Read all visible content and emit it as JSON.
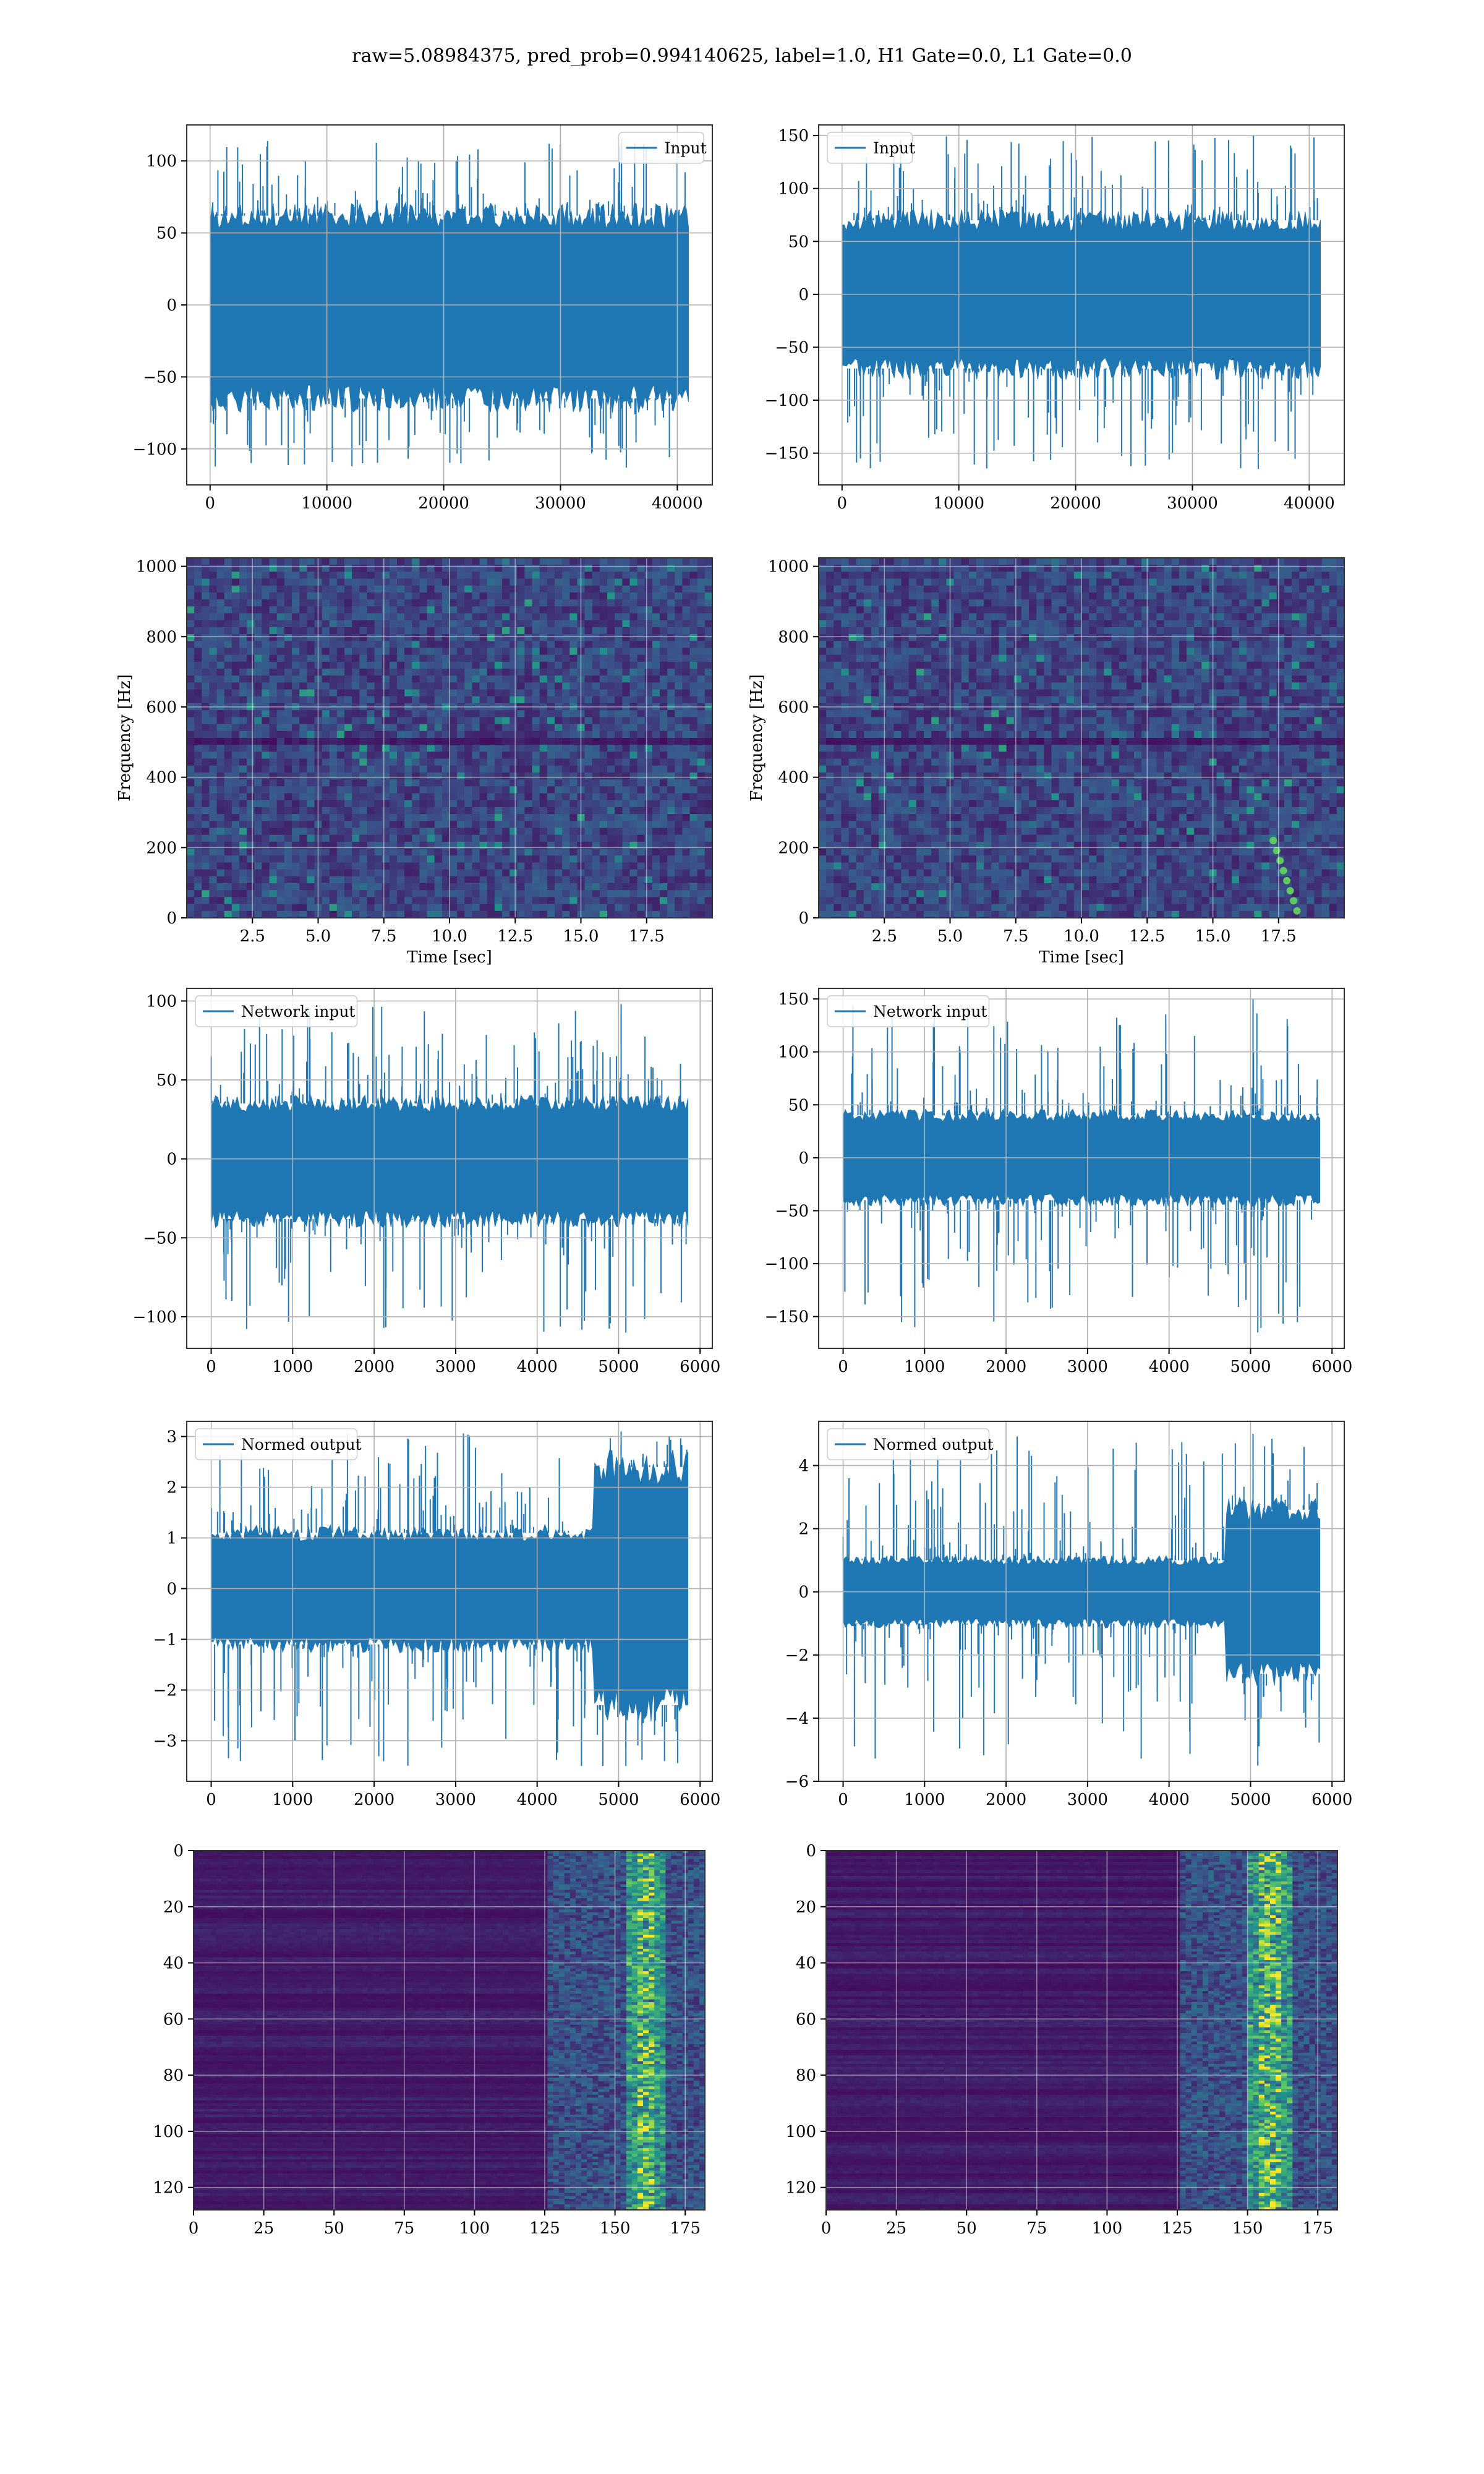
{
  "figure": {
    "title": "raw=5.08984375, pred_prob=0.994140625, label=1.0, H1 Gate=0.0, L1 Gate=0.0",
    "line_color": "#1f77b4"
  },
  "chart_data": [
    {
      "id": "input-h1",
      "type": "line",
      "title": "",
      "xlabel": "",
      "ylabel": "",
      "legend": {
        "label": "Input",
        "position": "top-right"
      },
      "xlim": [
        -2000,
        43000
      ],
      "ylim": [
        -125,
        125
      ],
      "xticks": [
        0,
        10000,
        20000,
        30000,
        40000
      ],
      "xticklabels": [
        "0",
        "10000",
        "20000",
        "30000",
        "40000"
      ],
      "yticks": [
        -100,
        -50,
        0,
        50,
        100
      ],
      "yticklabels": [
        "−100",
        "−50",
        "0",
        "50",
        "100"
      ],
      "grid": true,
      "series": [
        {
          "name": "Input",
          "x_range": [
            0,
            40960
          ],
          "band": [
            -65,
            62
          ],
          "min": -113,
          "max": 115
        }
      ]
    },
    {
      "id": "input-l1",
      "type": "line",
      "title": "",
      "xlabel": "",
      "ylabel": "",
      "legend": {
        "label": "Input",
        "position": "top-left"
      },
      "xlim": [
        -2000,
        43000
      ],
      "ylim": [
        -180,
        160
      ],
      "xticks": [
        0,
        10000,
        20000,
        30000,
        40000
      ],
      "xticklabels": [
        "0",
        "10000",
        "20000",
        "30000",
        "40000"
      ],
      "yticks": [
        -150,
        -100,
        -50,
        0,
        50,
        100,
        150
      ],
      "yticklabels": [
        "−150",
        "−100",
        "−50",
        "0",
        "50",
        "100",
        "150"
      ],
      "grid": true,
      "series": [
        {
          "name": "Input",
          "x_range": [
            0,
            40960
          ],
          "band": [
            -70,
            70
          ],
          "min": -165,
          "max": 150
        }
      ]
    },
    {
      "id": "spectrogram-h1",
      "type": "heatmap",
      "title": "",
      "xlabel": "Time [sec]",
      "ylabel": "Frequency [Hz]",
      "xlim": [
        0,
        20
      ],
      "ylim": [
        0,
        1024
      ],
      "xticks": [
        2.5,
        5,
        7.5,
        10,
        12.5,
        15,
        17.5
      ],
      "xticklabels": [
        "2.5",
        "5.0",
        "7.5",
        "10.0",
        "12.5",
        "15.0",
        "17.5"
      ],
      "yticks": [
        0,
        200,
        400,
        600,
        800,
        1000
      ],
      "yticklabels": [
        "0",
        "200",
        "400",
        "600",
        "800",
        "1000"
      ],
      "grid": true,
      "colormap": "viridis",
      "noise_seed": 11
    },
    {
      "id": "spectrogram-l1",
      "type": "heatmap",
      "title": "",
      "xlabel": "Time [sec]",
      "ylabel": "Frequency [Hz]",
      "xlim": [
        0,
        20
      ],
      "ylim": [
        0,
        1024
      ],
      "xticks": [
        2.5,
        5,
        7.5,
        10,
        12.5,
        15,
        17.5
      ],
      "xticklabels": [
        "2.5",
        "5.0",
        "7.5",
        "10.0",
        "12.5",
        "15.0",
        "17.5"
      ],
      "yticks": [
        0,
        200,
        400,
        600,
        800,
        1000
      ],
      "yticklabels": [
        "0",
        "200",
        "400",
        "600",
        "800",
        "1000"
      ],
      "grid": true,
      "colormap": "viridis",
      "noise_seed": 29,
      "chirp": {
        "t": [
          17.3,
          18.2
        ],
        "f": [
          20,
          220
        ]
      }
    },
    {
      "id": "network-input-h1",
      "type": "line",
      "title": "",
      "xlabel": "",
      "ylabel": "",
      "legend": {
        "label": "Network input",
        "position": "top-left"
      },
      "xlim": [
        -300,
        6150
      ],
      "ylim": [
        -120,
        108
      ],
      "xticks": [
        0,
        1000,
        2000,
        3000,
        4000,
        5000,
        6000
      ],
      "xticklabels": [
        "0",
        "1000",
        "2000",
        "3000",
        "4000",
        "5000",
        "6000"
      ],
      "yticks": [
        -100,
        -50,
        0,
        50,
        100
      ],
      "yticklabels": [
        "−100",
        "−50",
        "0",
        "50",
        "100"
      ],
      "grid": true,
      "series": [
        {
          "name": "Network input",
          "x_range": [
            0,
            5850
          ],
          "band": [
            -38,
            35
          ],
          "min": -110,
          "max": 98
        }
      ]
    },
    {
      "id": "network-input-l1",
      "type": "line",
      "title": "",
      "xlabel": "",
      "ylabel": "",
      "legend": {
        "label": "Network input",
        "position": "top-left"
      },
      "xlim": [
        -300,
        6150
      ],
      "ylim": [
        -180,
        160
      ],
      "xticks": [
        0,
        1000,
        2000,
        3000,
        4000,
        5000,
        6000
      ],
      "xticklabels": [
        "0",
        "1000",
        "2000",
        "3000",
        "4000",
        "5000",
        "6000"
      ],
      "yticks": [
        -150,
        -100,
        -50,
        0,
        50,
        100,
        150
      ],
      "yticklabels": [
        "−150",
        "−100",
        "−50",
        "0",
        "50",
        "100",
        "150"
      ],
      "grid": true,
      "series": [
        {
          "name": "Network input",
          "x_range": [
            0,
            5850
          ],
          "band": [
            -40,
            40
          ],
          "min": -165,
          "max": 150
        }
      ]
    },
    {
      "id": "normed-output-h1",
      "type": "line",
      "title": "",
      "xlabel": "",
      "ylabel": "",
      "legend": {
        "label": "Normed output",
        "position": "top-left"
      },
      "xlim": [
        -300,
        6150
      ],
      "ylim": [
        -3.8,
        3.3
      ],
      "xticks": [
        0,
        1000,
        2000,
        3000,
        4000,
        5000,
        6000
      ],
      "xticklabels": [
        "0",
        "1000",
        "2000",
        "3000",
        "4000",
        "5000",
        "6000"
      ],
      "yticks": [
        -3,
        -2,
        -1,
        0,
        1,
        2,
        3
      ],
      "yticklabels": [
        "−3",
        "−2",
        "−1",
        "0",
        "1",
        "2",
        "3"
      ],
      "grid": true,
      "series": [
        {
          "name": "Normed output",
          "x_range": [
            0,
            5850
          ],
          "band": [
            -1.1,
            1.1
          ],
          "min": -3.5,
          "max": 3.1,
          "burst": {
            "x_range": [
              4700,
              5850
            ],
            "band": [
              -2.3,
              2.4
            ]
          }
        }
      ]
    },
    {
      "id": "normed-output-l1",
      "type": "line",
      "title": "",
      "xlabel": "",
      "ylabel": "",
      "legend": {
        "label": "Normed output",
        "position": "top-left"
      },
      "xlim": [
        -300,
        6150
      ],
      "ylim": [
        -6,
        5.4
      ],
      "xticks": [
        0,
        1000,
        2000,
        3000,
        4000,
        5000,
        6000
      ],
      "xticklabels": [
        "0",
        "1000",
        "2000",
        "3000",
        "4000",
        "5000",
        "6000"
      ],
      "yticks": [
        -6,
        -4,
        -2,
        0,
        2,
        4
      ],
      "yticklabels": [
        "−6",
        "−4",
        "−2",
        "0",
        "2",
        "4"
      ],
      "grid": true,
      "series": [
        {
          "name": "Normed output",
          "x_range": [
            0,
            5850
          ],
          "band": [
            -1.0,
            1.0
          ],
          "min": -5.5,
          "max": 5.0,
          "burst": {
            "x_range": [
              4700,
              5850
            ],
            "band": [
              -2.6,
              2.6
            ]
          }
        }
      ]
    },
    {
      "id": "feature-map-h1",
      "type": "heatmap",
      "title": "",
      "xlabel": "",
      "ylabel": "",
      "xlim": [
        0,
        182
      ],
      "ylim": [
        128,
        0
      ],
      "xticks": [
        0,
        25,
        50,
        75,
        100,
        125,
        150,
        175
      ],
      "xticklabels": [
        "0",
        "25",
        "50",
        "75",
        "100",
        "125",
        "150",
        "175"
      ],
      "yticks": [
        0,
        20,
        40,
        60,
        80,
        100,
        120
      ],
      "yticklabels": [
        "0",
        "20",
        "40",
        "60",
        "80",
        "100",
        "120"
      ],
      "grid": true,
      "colormap": "viridis",
      "noise_seed": 5,
      "active_from": 125,
      "peak_at": 160
    },
    {
      "id": "feature-map-l1",
      "type": "heatmap",
      "title": "",
      "xlabel": "",
      "ylabel": "",
      "xlim": [
        0,
        182
      ],
      "ylim": [
        128,
        0
      ],
      "xticks": [
        0,
        25,
        50,
        75,
        100,
        125,
        150,
        175
      ],
      "xticklabels": [
        "0",
        "25",
        "50",
        "75",
        "100",
        "125",
        "150",
        "175"
      ],
      "yticks": [
        0,
        20,
        40,
        60,
        80,
        100,
        120
      ],
      "yticklabels": [
        "0",
        "20",
        "40",
        "60",
        "80",
        "100",
        "120"
      ],
      "grid": true,
      "colormap": "viridis",
      "noise_seed": 17,
      "active_from": 125,
      "peak_at": 157
    }
  ]
}
